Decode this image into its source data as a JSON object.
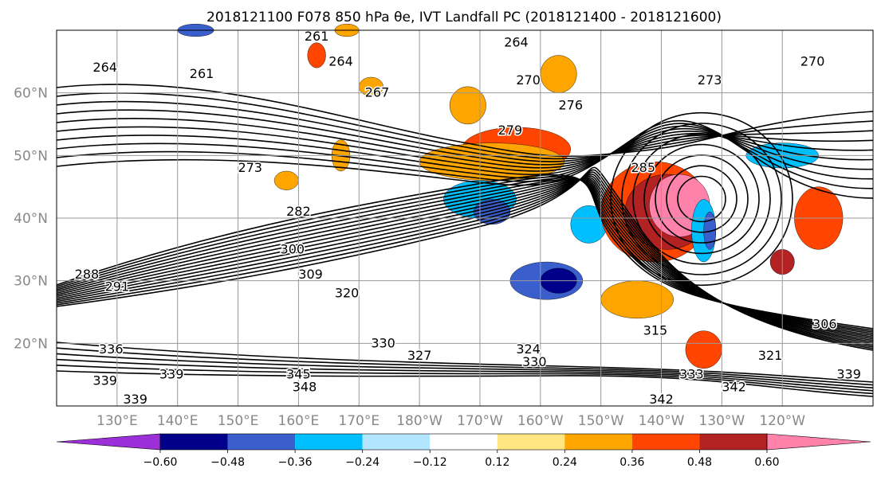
{
  "figure": {
    "title": "2018121100 F078 850 hPa θe, IVT Landfall PC (2018121400 - 2018121600)"
  },
  "map": {
    "projection": "cylindrical",
    "lon_range_east": [
      120,
      255
    ],
    "lat_range": [
      10,
      70
    ],
    "lat_ticks": [
      {
        "lat": 60,
        "label": "60°N"
      },
      {
        "lat": 50,
        "label": "50°N"
      },
      {
        "lat": 40,
        "label": "40°N"
      },
      {
        "lat": 30,
        "label": "30°N"
      },
      {
        "lat": 20,
        "label": "20°N"
      }
    ],
    "lon_ticks": [
      {
        "lon": 130,
        "label": "130°E"
      },
      {
        "lon": 140,
        "label": "140°E"
      },
      {
        "lon": 150,
        "label": "150°E"
      },
      {
        "lon": 160,
        "label": "160°E"
      },
      {
        "lon": 170,
        "label": "170°E"
      },
      {
        "lon": 180,
        "label": "180°W"
      },
      {
        "lon": 190,
        "label": "170°W"
      },
      {
        "lon": 200,
        "label": "160°W"
      },
      {
        "lon": 210,
        "label": "150°W"
      },
      {
        "lon": 220,
        "label": "140°W"
      },
      {
        "lon": 230,
        "label": "130°W"
      },
      {
        "lon": 240,
        "label": "120°W"
      }
    ],
    "grid": true,
    "contour_labels": [
      {
        "text": "261",
        "lon": 163,
        "lat": 69
      },
      {
        "text": "264",
        "lon": 128,
        "lat": 64
      },
      {
        "text": "261",
        "lon": 144,
        "lat": 63
      },
      {
        "text": "264",
        "lon": 167,
        "lat": 65
      },
      {
        "text": "264",
        "lon": 196,
        "lat": 68
      },
      {
        "text": "270",
        "lon": 198,
        "lat": 62
      },
      {
        "text": "270",
        "lon": 245,
        "lat": 65
      },
      {
        "text": "267",
        "lon": 173,
        "lat": 60
      },
      {
        "text": "273",
        "lon": 228,
        "lat": 62
      },
      {
        "text": "276",
        "lon": 205,
        "lat": 58
      },
      {
        "text": "279",
        "lon": 195,
        "lat": 54
      },
      {
        "text": "273",
        "lon": 152,
        "lat": 48
      },
      {
        "text": "285",
        "lon": 217,
        "lat": 48
      },
      {
        "text": "282",
        "lon": 160,
        "lat": 41
      },
      {
        "text": "300",
        "lon": 159,
        "lat": 35
      },
      {
        "text": "309",
        "lon": 162,
        "lat": 31
      },
      {
        "text": "288",
        "lon": 125,
        "lat": 31
      },
      {
        "text": "291",
        "lon": 130,
        "lat": 29
      },
      {
        "text": "320",
        "lon": 168,
        "lat": 28
      },
      {
        "text": "315",
        "lon": 219,
        "lat": 22
      },
      {
        "text": "306",
        "lon": 247,
        "lat": 23
      },
      {
        "text": "336",
        "lon": 129,
        "lat": 19
      },
      {
        "text": "330",
        "lon": 174,
        "lat": 20
      },
      {
        "text": "327",
        "lon": 180,
        "lat": 18
      },
      {
        "text": "324",
        "lon": 198,
        "lat": 19
      },
      {
        "text": "330",
        "lon": 199,
        "lat": 17
      },
      {
        "text": "321",
        "lon": 238,
        "lat": 18
      },
      {
        "text": "339",
        "lon": 251,
        "lat": 15
      },
      {
        "text": "345",
        "lon": 160,
        "lat": 15
      },
      {
        "text": "348",
        "lon": 161,
        "lat": 13
      },
      {
        "text": "339",
        "lon": 128,
        "lat": 14
      },
      {
        "text": "339",
        "lon": 139,
        "lat": 15
      },
      {
        "text": "339",
        "lon": 133,
        "lat": 11
      },
      {
        "text": "333",
        "lon": 225,
        "lat": 15
      },
      {
        "text": "342",
        "lon": 232,
        "lat": 13
      },
      {
        "text": "342",
        "lon": 220,
        "lat": 11
      }
    ],
    "shaded_field": {
      "colors": {
        "lt_-0.60": "#9b30d9",
        "-0.60_-0.48": "#00008b",
        "-0.48_-0.36": "#3a5fcd",
        "-0.36_-0.24": "#00bfff",
        "-0.24_-0.12": "#b2e5ff",
        "0.24_0.36": "#ffa500",
        "0.36_0.48": "#ff4500",
        "0.48_0.60": "#b22222",
        "gt_0.60": "#ff82ab"
      },
      "blobs": [
        {
          "lon": 196,
          "lat": 51,
          "rlon": 9,
          "rlat": 3.5,
          "color": "#ff4500"
        },
        {
          "lon": 192,
          "lat": 49,
          "rlon": 12,
          "rlat": 3,
          "color": "#ffa500"
        },
        {
          "lon": 188,
          "lat": 58,
          "rlon": 3,
          "rlat": 3,
          "color": "#ffa500"
        },
        {
          "lon": 190,
          "lat": 43,
          "rlon": 6,
          "rlat": 3,
          "color": "#00bfff"
        },
        {
          "lon": 192,
          "lat": 41,
          "rlon": 3,
          "rlat": 2,
          "color": "#3a5fcd"
        },
        {
          "lon": 201,
          "lat": 30,
          "rlon": 6,
          "rlat": 3,
          "color": "#3a5fcd"
        },
        {
          "lon": 203,
          "lat": 30,
          "rlon": 3,
          "rlat": 2,
          "color": "#00008b"
        },
        {
          "lon": 208,
          "lat": 39,
          "rlon": 3,
          "rlat": 3,
          "color": "#00bfff"
        },
        {
          "lon": 219,
          "lat": 41,
          "rlon": 9,
          "rlat": 8,
          "color": "#ff4500"
        },
        {
          "lon": 221,
          "lat": 41,
          "rlon": 7,
          "rlat": 6,
          "color": "#b22222"
        },
        {
          "lon": 223,
          "lat": 42,
          "rlon": 5,
          "rlat": 5,
          "color": "#ff82ab"
        },
        {
          "lon": 227,
          "lat": 38,
          "rlon": 2,
          "rlat": 5,
          "color": "#00bfff"
        },
        {
          "lon": 228,
          "lat": 38,
          "rlon": 1,
          "rlat": 3,
          "color": "#3a5fcd"
        },
        {
          "lon": 216,
          "lat": 27,
          "rlon": 6,
          "rlat": 3,
          "color": "#ffa500"
        },
        {
          "lon": 227,
          "lat": 19,
          "rlon": 3,
          "rlat": 3,
          "color": "#ff4500"
        },
        {
          "lon": 246,
          "lat": 40,
          "rlon": 4,
          "rlat": 5,
          "color": "#ff4500"
        },
        {
          "lon": 240,
          "lat": 33,
          "rlon": 2,
          "rlat": 2,
          "color": "#b22222"
        },
        {
          "lon": 240,
          "lat": 50,
          "rlon": 6,
          "rlat": 2,
          "color": "#00bfff"
        },
        {
          "lon": 167,
          "lat": 50,
          "rlon": 1.5,
          "rlat": 2.5,
          "color": "#ffa500"
        },
        {
          "lon": 158,
          "lat": 46,
          "rlon": 2,
          "rlat": 1.5,
          "color": "#ffa500"
        },
        {
          "lon": 172,
          "lat": 61,
          "rlon": 2,
          "rlat": 1.5,
          "color": "#ffa500"
        },
        {
          "lon": 163,
          "lat": 66,
          "rlon": 1.5,
          "rlat": 2,
          "color": "#ff4500"
        },
        {
          "lon": 203,
          "lat": 63,
          "rlon": 3,
          "rlat": 3,
          "color": "#ffa500"
        },
        {
          "lon": 143,
          "lat": 70,
          "rlon": 3,
          "rlat": 1,
          "color": "#3a5fcd"
        },
        {
          "lon": 168,
          "lat": 70,
          "rlon": 2,
          "rlat": 1,
          "color": "#ffa500"
        }
      ]
    }
  },
  "colorbar": {
    "levels": [
      "-0.60",
      "-0.48",
      "-0.36",
      "-0.24",
      "-0.12",
      "0.12",
      "0.24",
      "0.36",
      "0.48",
      "0.60"
    ],
    "colors": [
      "#9b30d9",
      "#00008b",
      "#3a5fcd",
      "#00bfff",
      "#b2e5ff",
      "#ffffff",
      "#ffe680",
      "#ffa500",
      "#ff4500",
      "#b22222",
      "#ff82ab"
    ]
  }
}
